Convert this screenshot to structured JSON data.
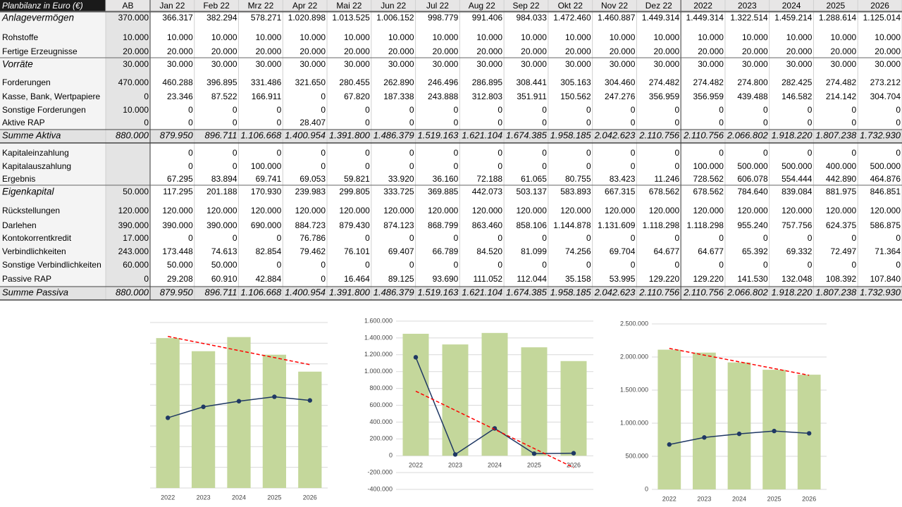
{
  "table": {
    "title": "Planbilanz in Euro (€)",
    "columns": [
      "AB",
      "Jan 22",
      "Feb 22",
      "Mrz 22",
      "Apr 22",
      "Mai 22",
      "Jun 22",
      "Jul 22",
      "Aug 22",
      "Sep 22",
      "Okt 22",
      "Nov 22",
      "Dez 22",
      "2022",
      "2023",
      "2024",
      "2025",
      "2026"
    ],
    "rows": [
      {
        "label": "Anlagevermögen",
        "cells": [
          "370.000",
          "366.317",
          "382.294",
          "578.271",
          "1.020.898",
          "1.013.525",
          "1.006.152",
          "998.779",
          "991.406",
          "984.033",
          "1.472.460",
          "1.460.887",
          "1.449.314",
          "1.449.314",
          "1.322.514",
          "1.459.214",
          "1.288.614",
          "1.125.014"
        ]
      },
      {
        "label": "Rohstoffe",
        "cells": [
          "10.000",
          "10.000",
          "10.000",
          "10.000",
          "10.000",
          "10.000",
          "10.000",
          "10.000",
          "10.000",
          "10.000",
          "10.000",
          "10.000",
          "10.000",
          "10.000",
          "10.000",
          "10.000",
          "10.000",
          "10.000"
        ]
      },
      {
        "label": "Fertige Erzeugnisse",
        "cells": [
          "20.000",
          "20.000",
          "20.000",
          "20.000",
          "20.000",
          "20.000",
          "20.000",
          "20.000",
          "20.000",
          "20.000",
          "20.000",
          "20.000",
          "20.000",
          "20.000",
          "20.000",
          "20.000",
          "20.000",
          "20.000"
        ]
      },
      {
        "label": "Vorräte",
        "cells": [
          "30.000",
          "30.000",
          "30.000",
          "30.000",
          "30.000",
          "30.000",
          "30.000",
          "30.000",
          "30.000",
          "30.000",
          "30.000",
          "30.000",
          "30.000",
          "30.000",
          "30.000",
          "30.000",
          "30.000",
          "30.000"
        ]
      },
      {
        "label": "Forderungen",
        "cells": [
          "470.000",
          "460.288",
          "396.895",
          "331.486",
          "321.650",
          "280.455",
          "262.890",
          "246.496",
          "286.895",
          "308.441",
          "305.163",
          "304.460",
          "274.482",
          "274.482",
          "274.800",
          "282.425",
          "274.482",
          "273.212"
        ]
      },
      {
        "label": "Kasse, Bank, Wertpapiere",
        "cells": [
          "0",
          "23.346",
          "87.522",
          "166.911",
          "0",
          "67.820",
          "187.338",
          "243.888",
          "312.803",
          "351.911",
          "150.562",
          "247.276",
          "356.959",
          "356.959",
          "439.488",
          "146.582",
          "214.142",
          "304.704"
        ]
      },
      {
        "label": "Sonstige Forderungen",
        "cells": [
          "10.000",
          "0",
          "0",
          "0",
          "0",
          "0",
          "0",
          "0",
          "0",
          "0",
          "0",
          "0",
          "0",
          "0",
          "0",
          "0",
          "0",
          "0"
        ]
      },
      {
        "label": "Aktive RAP",
        "cells": [
          "0",
          "0",
          "0",
          "0",
          "28.407",
          "0",
          "0",
          "0",
          "0",
          "0",
          "0",
          "0",
          "0",
          "0",
          "0",
          "0",
          "0",
          "0"
        ]
      },
      {
        "label": "Summe Aktiva",
        "cells": [
          "880.000",
          "879.950",
          "896.711",
          "1.106.668",
          "1.400.954",
          "1.391.800",
          "1.486.379",
          "1.519.163",
          "1.621.104",
          "1.674.385",
          "1.958.185",
          "2.042.623",
          "2.110.756",
          "2.110.756",
          "2.066.802",
          "1.918.220",
          "1.807.238",
          "1.732.930"
        ]
      },
      {
        "label": "Kapitaleinzahlung",
        "cells": [
          null,
          "0",
          "0",
          "0",
          "0",
          "0",
          "0",
          "0",
          "0",
          "0",
          "0",
          "0",
          "0",
          "0",
          "0",
          "0",
          "0",
          "0"
        ]
      },
      {
        "label": "Kapitalauszahlung",
        "cells": [
          null,
          "0",
          "0",
          "100.000",
          "0",
          "0",
          "0",
          "0",
          "0",
          "0",
          "0",
          "0",
          "0",
          "100.000",
          "500.000",
          "500.000",
          "400.000",
          "500.000"
        ]
      },
      {
        "label": "Ergebnis",
        "cells": [
          null,
          "67.295",
          "83.894",
          "69.741",
          "69.053",
          "59.821",
          "33.920",
          "36.160",
          "72.188",
          "61.065",
          "80.755",
          "83.423",
          "11.246",
          "728.562",
          "606.078",
          "554.444",
          "442.890",
          "464.876"
        ]
      },
      {
        "label": "Eigenkapital",
        "cells": [
          "50.000",
          "117.295",
          "201.188",
          "170.930",
          "239.983",
          "299.805",
          "333.725",
          "369.885",
          "442.073",
          "503.137",
          "583.893",
          "667.315",
          "678.562",
          "678.562",
          "784.640",
          "839.084",
          "881.975",
          "846.851"
        ]
      },
      {
        "label": "Rückstellungen",
        "cells": [
          "120.000",
          "120.000",
          "120.000",
          "120.000",
          "120.000",
          "120.000",
          "120.000",
          "120.000",
          "120.000",
          "120.000",
          "120.000",
          "120.000",
          "120.000",
          "120.000",
          "120.000",
          "120.000",
          "120.000",
          "120.000"
        ]
      },
      {
        "label": "Darlehen",
        "cells": [
          "390.000",
          "390.000",
          "390.000",
          "690.000",
          "884.723",
          "879.430",
          "874.123",
          "868.799",
          "863.460",
          "858.106",
          "1.144.878",
          "1.131.609",
          "1.118.298",
          "1.118.298",
          "955.240",
          "757.756",
          "624.375",
          "586.875"
        ]
      },
      {
        "label": "Kontokorrentkredit",
        "cells": [
          "17.000",
          "0",
          "0",
          "0",
          "76.786",
          "0",
          "0",
          "0",
          "0",
          "0",
          "0",
          "0",
          "0",
          "0",
          "0",
          "0",
          "0",
          "0"
        ]
      },
      {
        "label": "Verbindlichkeiten",
        "cells": [
          "243.000",
          "173.448",
          "74.613",
          "82.854",
          "79.462",
          "76.101",
          "69.407",
          "66.789",
          "84.520",
          "81.099",
          "74.256",
          "69.704",
          "64.677",
          "64.677",
          "65.392",
          "69.332",
          "72.497",
          "71.364"
        ]
      },
      {
        "label": "Sonstige Verbindlichkeiten",
        "cells": [
          "60.000",
          "50.000",
          "50.000",
          "0",
          "0",
          "0",
          "0",
          "0",
          "0",
          "0",
          "0",
          "0",
          "0",
          "0",
          "0",
          "0",
          "0",
          "0"
        ]
      },
      {
        "label": "Passive RAP",
        "cells": [
          "0",
          "29.208",
          "60.910",
          "42.884",
          "0",
          "16.464",
          "89.125",
          "93.690",
          "111.052",
          "112.044",
          "35.158",
          "53.995",
          "129.220",
          "129.220",
          "141.530",
          "132.048",
          "108.392",
          "107.840"
        ]
      },
      {
        "label": "Summe Passiva",
        "cells": [
          "880.000",
          "879.950",
          "896.711",
          "1.106.668",
          "1.400.954",
          "1.391.800",
          "1.486.379",
          "1.519.163",
          "1.621.104",
          "1.674.385",
          "1.958.185",
          "2.042.623",
          "2.110.756",
          "2.110.756",
          "2.066.802",
          "1.918.220",
          "1.807.238",
          "1.732.930"
        ]
      }
    ]
  },
  "chart_data": [
    {
      "type": "combo",
      "categories": [
        "2022",
        "2023",
        "2024",
        "2025",
        "2026"
      ],
      "series": [
        {
          "type": "bar",
          "color": "#c4d79b",
          "values": [
            1449314,
            1322514,
            1459214,
            1288614,
            1125014
          ]
        },
        {
          "type": "line",
          "color": "#1f3864",
          "values": [
            678562,
            784640,
            839084,
            881975,
            846851
          ]
        }
      ],
      "trendline_series": 0,
      "trendline_color": "#ff0000",
      "ylim": [
        0,
        1600000
      ],
      "yticks": [
        0,
        200000,
        400000,
        600000,
        800000,
        1000000,
        1200000,
        1400000,
        1600000
      ],
      "tick_labels": false,
      "grid": true
    },
    {
      "type": "combo",
      "categories": [
        "2022",
        "2023",
        "2024",
        "2025",
        "2026"
      ],
      "series": [
        {
          "type": "bar",
          "color": "#c4d79b",
          "values": [
            1449314,
            1322514,
            1459214,
            1288614,
            1125014
          ]
        },
        {
          "type": "line",
          "color": "#1f3864",
          "values": [
            1170000,
            15000,
            325000,
            25000,
            30000
          ]
        }
      ],
      "trendline_series": 1,
      "trendline_color": "#ff0000",
      "ylim": [
        -400000,
        1600000
      ],
      "yticks": [
        {
          "value": -400000,
          "label": "-400.000"
        },
        {
          "value": -200000,
          "label": "-200.000"
        },
        0,
        {
          "value": 200000,
          "label": "200.000"
        },
        {
          "value": 400000,
          "label": "400.000"
        },
        {
          "value": 600000,
          "label": "600.000"
        },
        {
          "value": 800000,
          "label": "800.000"
        },
        {
          "value": 1000000,
          "label": "1.000.000"
        },
        {
          "value": 1200000,
          "label": "1.200.000"
        },
        {
          "value": 1400000,
          "label": "1.400.000"
        },
        {
          "value": 1600000,
          "label": "1.600.000"
        }
      ],
      "tick_labels": true,
      "grid": true
    },
    {
      "type": "combo",
      "categories": [
        "2022",
        "2023",
        "2024",
        "2025",
        "2026"
      ],
      "series": [
        {
          "type": "bar",
          "color": "#c4d79b",
          "values": [
            2110756,
            2066802,
            1918220,
            1807238,
            1732930
          ]
        },
        {
          "type": "line",
          "color": "#1f3864",
          "values": [
            678562,
            784640,
            839084,
            881975,
            846851
          ]
        }
      ],
      "trendline_series": 0,
      "trendline_color": "#ff0000",
      "ylim": [
        0,
        2500000
      ],
      "yticks": [
        0,
        {
          "value": 500000,
          "label": "500.000"
        },
        {
          "value": 1000000,
          "label": "1.000.000"
        },
        {
          "value": 1500000,
          "label": "1.500.000"
        },
        {
          "value": 2000000,
          "label": "2.000.000"
        },
        {
          "value": 2500000,
          "label": "2.500.000"
        }
      ],
      "tick_labels": true,
      "grid": true
    }
  ]
}
